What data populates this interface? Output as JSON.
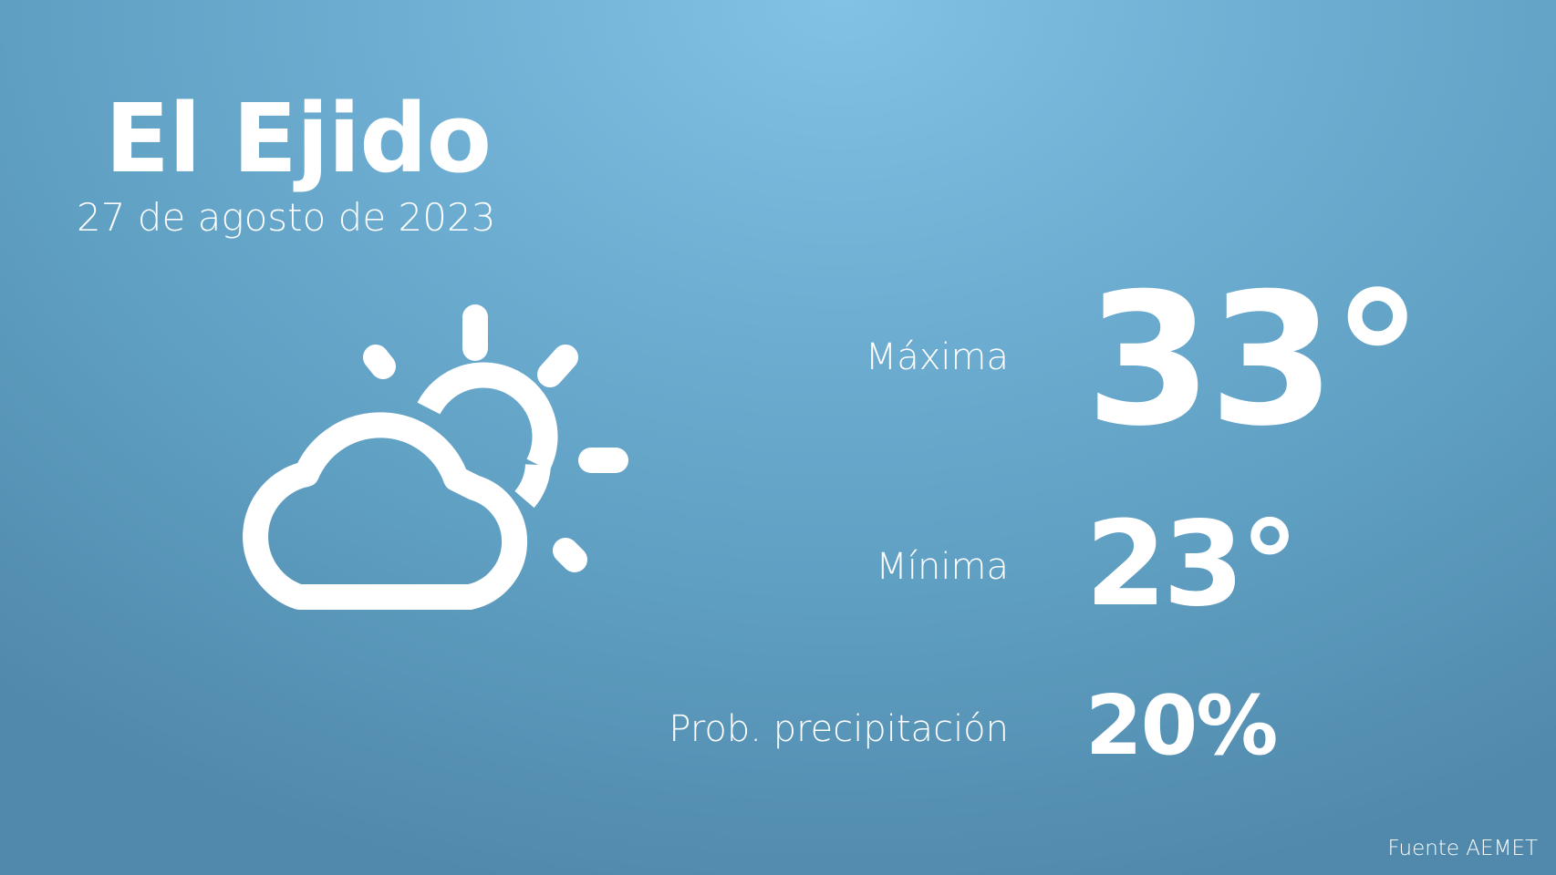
{
  "location": "El Ejido",
  "date": "27 de agosto de 2023",
  "weather_icon": "partly-cloudy-icon",
  "stats": {
    "max": {
      "label": "Máxima",
      "value": "33°"
    },
    "min": {
      "label": "Mínima",
      "value": "23°"
    },
    "precip": {
      "label": "Prob. precipitación",
      "value": "20%"
    }
  },
  "source": "Fuente AEMET",
  "colors": {
    "background_top": "#82c2e4",
    "background_bottom": "#5089ab",
    "text": "#ffffff"
  }
}
